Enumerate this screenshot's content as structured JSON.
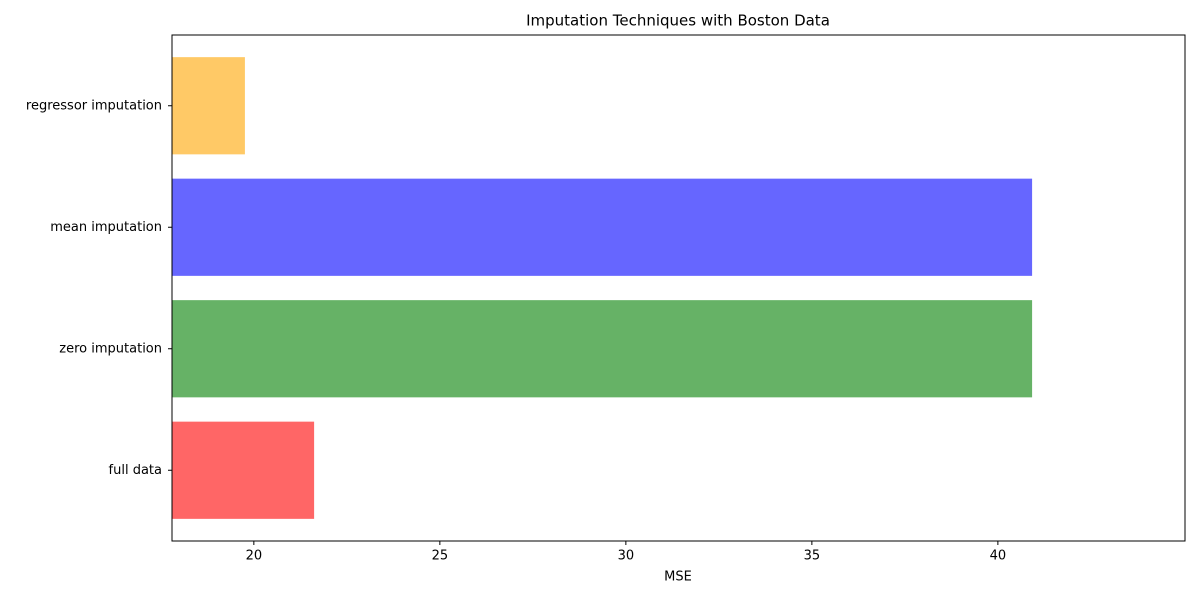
{
  "chart_data": {
    "type": "barh",
    "title": "Imputation Techniques with Boston Data",
    "xlabel": "MSE",
    "categories": [
      "regressor imputation",
      "mean imputation",
      "zero imputation",
      "full data"
    ],
    "values": [
      19.76,
      40.92,
      40.92,
      21.62
    ],
    "colors": [
      "#ffc966",
      "#6666ff",
      "#66b266",
      "#ff6666"
    ],
    "xlim": [
      17.8,
      45.03
    ],
    "xticks": [
      20,
      25,
      30,
      35,
      40
    ],
    "grid": false
  }
}
